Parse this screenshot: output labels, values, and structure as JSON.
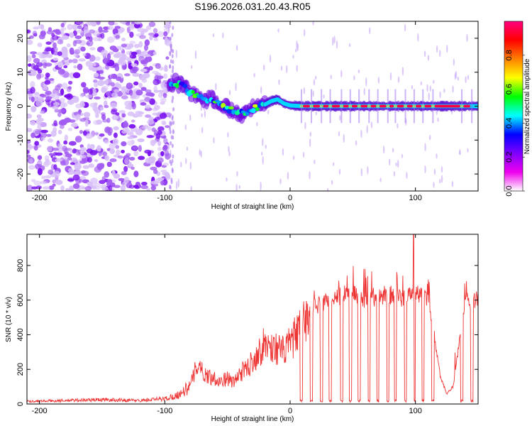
{
  "title": "S196.2026.031.20.43.R05",
  "chart_data": [
    {
      "type": "heatmap",
      "name": "spectrogram",
      "xlabel": "Height of straight line (km)",
      "ylabel": "Frequency (Hz)",
      "xlim": [
        -210,
        150
      ],
      "ylim": [
        -25,
        25
      ],
      "xticks": [
        -200,
        -100,
        0,
        100
      ],
      "yticks": [
        -20,
        -10,
        0,
        10,
        20
      ],
      "colorbar": {
        "label": "Normalized spectral amplitude",
        "range": [
          0,
          1
        ],
        "ticks": [
          0.0,
          0.2,
          0.4,
          0.6,
          0.8
        ],
        "colors": [
          "#ffffff",
          "#ee00ee",
          "#8000ff",
          "#0000ff",
          "#00ffff",
          "#00ff00",
          "#ffff00",
          "#ff8000",
          "#ff0000",
          "#ff0080"
        ]
      },
      "regions": [
        {
          "name": "noise",
          "x_range": [
            -210,
            -97
          ],
          "freq_range": [
            -25,
            25
          ],
          "amplitude": 0.05
        },
        {
          "name": "transition",
          "x_range": [
            -97,
            -20
          ],
          "amplitude": 0.3
        },
        {
          "name": "carrier",
          "x_range": [
            -20,
            150
          ],
          "freq": 0,
          "amplitude": 0.95
        }
      ],
      "ridge": {
        "x": [
          -97,
          -92,
          -85,
          -80,
          -75,
          -70,
          -65,
          -60,
          -55,
          -50,
          -45,
          -40,
          -35,
          -30,
          -25,
          -20,
          -15,
          -10,
          -5,
          0,
          10,
          50,
          100,
          150
        ],
        "freq": [
          5,
          7,
          6,
          4,
          3,
          2,
          2,
          1.5,
          0.5,
          -0.5,
          -1.5,
          -2,
          -2.5,
          -1,
          0,
          0.5,
          1.5,
          2,
          0.8,
          0.2,
          0,
          0,
          0,
          0
        ]
      }
    },
    {
      "type": "line",
      "name": "snr",
      "xlabel": "Height of straight line (km)",
      "ylabel": "SNR (10 * v/v)",
      "xlim": [
        -210,
        150
      ],
      "ylim": [
        0,
        980
      ],
      "xticks": [
        -200,
        -100,
        0,
        100
      ],
      "yticks": [
        0,
        200,
        400,
        600,
        800
      ],
      "color": "#ee3333",
      "envelope": {
        "x": [
          -210,
          -180,
          -150,
          -120,
          -100,
          -90,
          -80,
          -73,
          -70,
          -65,
          -60,
          -55,
          -50,
          -45,
          -40,
          -35,
          -30,
          -25,
          -20,
          -15,
          -10,
          -5,
          0,
          5,
          10,
          15,
          20,
          30,
          40,
          50,
          60,
          70,
          80,
          90,
          100,
          110,
          115,
          120,
          125,
          130,
          135,
          140,
          145,
          150
        ],
        "values": [
          15,
          20,
          25,
          20,
          30,
          50,
          100,
          250,
          180,
          160,
          150,
          130,
          150,
          120,
          180,
          200,
          250,
          300,
          350,
          330,
          320,
          300,
          350,
          400,
          450,
          520,
          560,
          600,
          620,
          630,
          610,
          620,
          630,
          600,
          640,
          600,
          400,
          150,
          60,
          100,
          350,
          600,
          600,
          600
        ]
      },
      "dropouts_x": [
        9,
        17,
        25,
        32,
        41,
        48,
        55,
        63,
        70,
        78,
        84,
        92,
        99,
        106,
        114,
        137,
        145
      ]
    }
  ]
}
